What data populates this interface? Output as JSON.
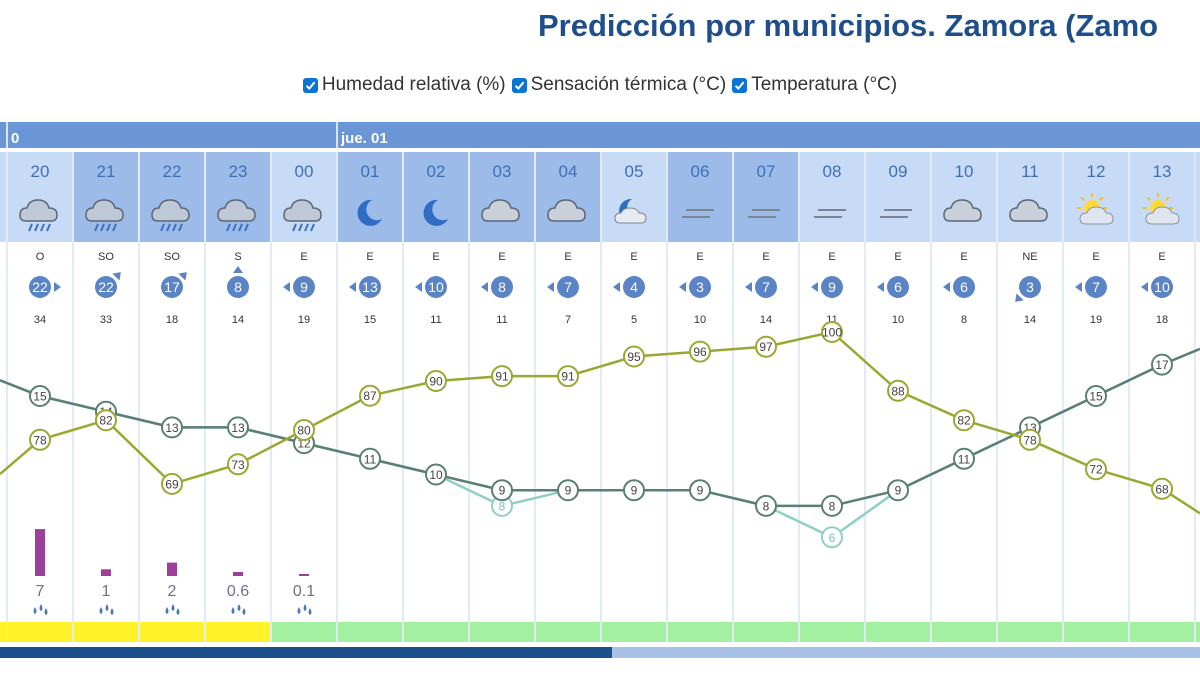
{
  "title": "Predicción por municipios. Zamora (Zamo",
  "legend": [
    {
      "label": "Humedad relativa (%)",
      "checked": true
    },
    {
      "label": "Sensación térmica (°C)",
      "checked": true
    },
    {
      "label": "Temperatura (°C)",
      "checked": true
    }
  ],
  "colors": {
    "header_bar": "#6a95d6",
    "header_cell": "#c7dbf7",
    "header_cell_dark": "#9cbbe9",
    "humidity": "#9aa832",
    "temperature": "#5a7f73",
    "feels_like": "#8fcfc4",
    "rain_bar": "#9b3f9b",
    "badge": "#5b84c6",
    "warning_yellow": "#fff229",
    "warning_green": "#a3f0a1",
    "scroll_dark": "#1c4f8c",
    "scroll_light": "#a9c1e6",
    "grid": "#d9e4f2"
  },
  "days": [
    {
      "label": "0",
      "start_index": -1
    },
    {
      "label": "jue. 01",
      "start_index": 4
    }
  ],
  "chart_data": {
    "type": "line",
    "hours": [
      "20",
      "21",
      "22",
      "23",
      "00",
      "01",
      "02",
      "03",
      "04",
      "05",
      "06",
      "07",
      "08",
      "09",
      "10",
      "11",
      "12",
      "13"
    ],
    "sky_icons": [
      "cloud-rain-icon",
      "cloud-rain-icon",
      "cloud-rain-icon",
      "cloud-rain-icon",
      "cloud-rain-icon",
      "moon-icon",
      "moon-icon",
      "cloud-icon",
      "cloud-icon",
      "moon-cloud-icon",
      "fog-icon",
      "fog-icon",
      "fog-icon",
      "fog-icon",
      "cloud-icon",
      "cloud-icon",
      "sun-cloud-icon",
      "sun-cloud-icon"
    ],
    "wind_direction": [
      "O",
      "SO",
      "SO",
      "S",
      "E",
      "E",
      "E",
      "E",
      "E",
      "E",
      "E",
      "E",
      "E",
      "E",
      "E",
      "NE",
      "E",
      "E"
    ],
    "wind_speed": [
      22,
      22,
      17,
      8,
      9,
      13,
      10,
      8,
      7,
      4,
      3,
      7,
      9,
      6,
      6,
      3,
      7,
      10
    ],
    "wind_gust": [
      34,
      33,
      18,
      14,
      19,
      15,
      11,
      11,
      7,
      5,
      10,
      14,
      11,
      10,
      8,
      14,
      19,
      18
    ],
    "series": [
      {
        "name": "Humedad relativa (%)",
        "values": [
          78,
          82,
          69,
          73,
          80,
          87,
          90,
          91,
          91,
          95,
          96,
          97,
          100,
          88,
          82,
          78,
          72,
          68
        ],
        "edge_left": 71,
        "edge_right": 63
      },
      {
        "name": "Temperatura (°C)",
        "values": [
          15,
          14,
          13,
          13,
          12,
          11,
          10,
          9,
          9,
          9,
          9,
          8,
          8,
          9,
          11,
          13,
          15,
          17
        ],
        "edge_left": 16,
        "edge_right": 18
      },
      {
        "name": "Sensación térmica (°C)",
        "values": [
          15,
          14,
          13,
          13,
          12,
          11,
          10,
          8,
          9,
          9,
          9,
          8,
          6,
          9,
          11,
          13,
          15,
          17
        ],
        "edge_left": 16,
        "edge_right": 18
      }
    ],
    "precipitation": [
      7,
      1,
      2,
      0.6,
      0.1,
      0,
      0,
      0,
      0,
      0,
      0,
      0,
      0,
      0,
      0,
      0,
      0,
      0
    ],
    "precipitation_labels": [
      "7",
      "1",
      "2",
      "0.6",
      "0.1",
      "",
      "",
      "",
      "",
      "",
      "",
      "",
      "",
      "",
      "",
      "",
      "",
      ""
    ],
    "warning_level": [
      "yellow",
      "yellow",
      "yellow",
      "yellow",
      "green",
      "green",
      "green",
      "green",
      "green",
      "green",
      "green",
      "green",
      "green",
      "green",
      "green",
      "green",
      "green",
      "green"
    ],
    "scroll_position": 0.51
  }
}
